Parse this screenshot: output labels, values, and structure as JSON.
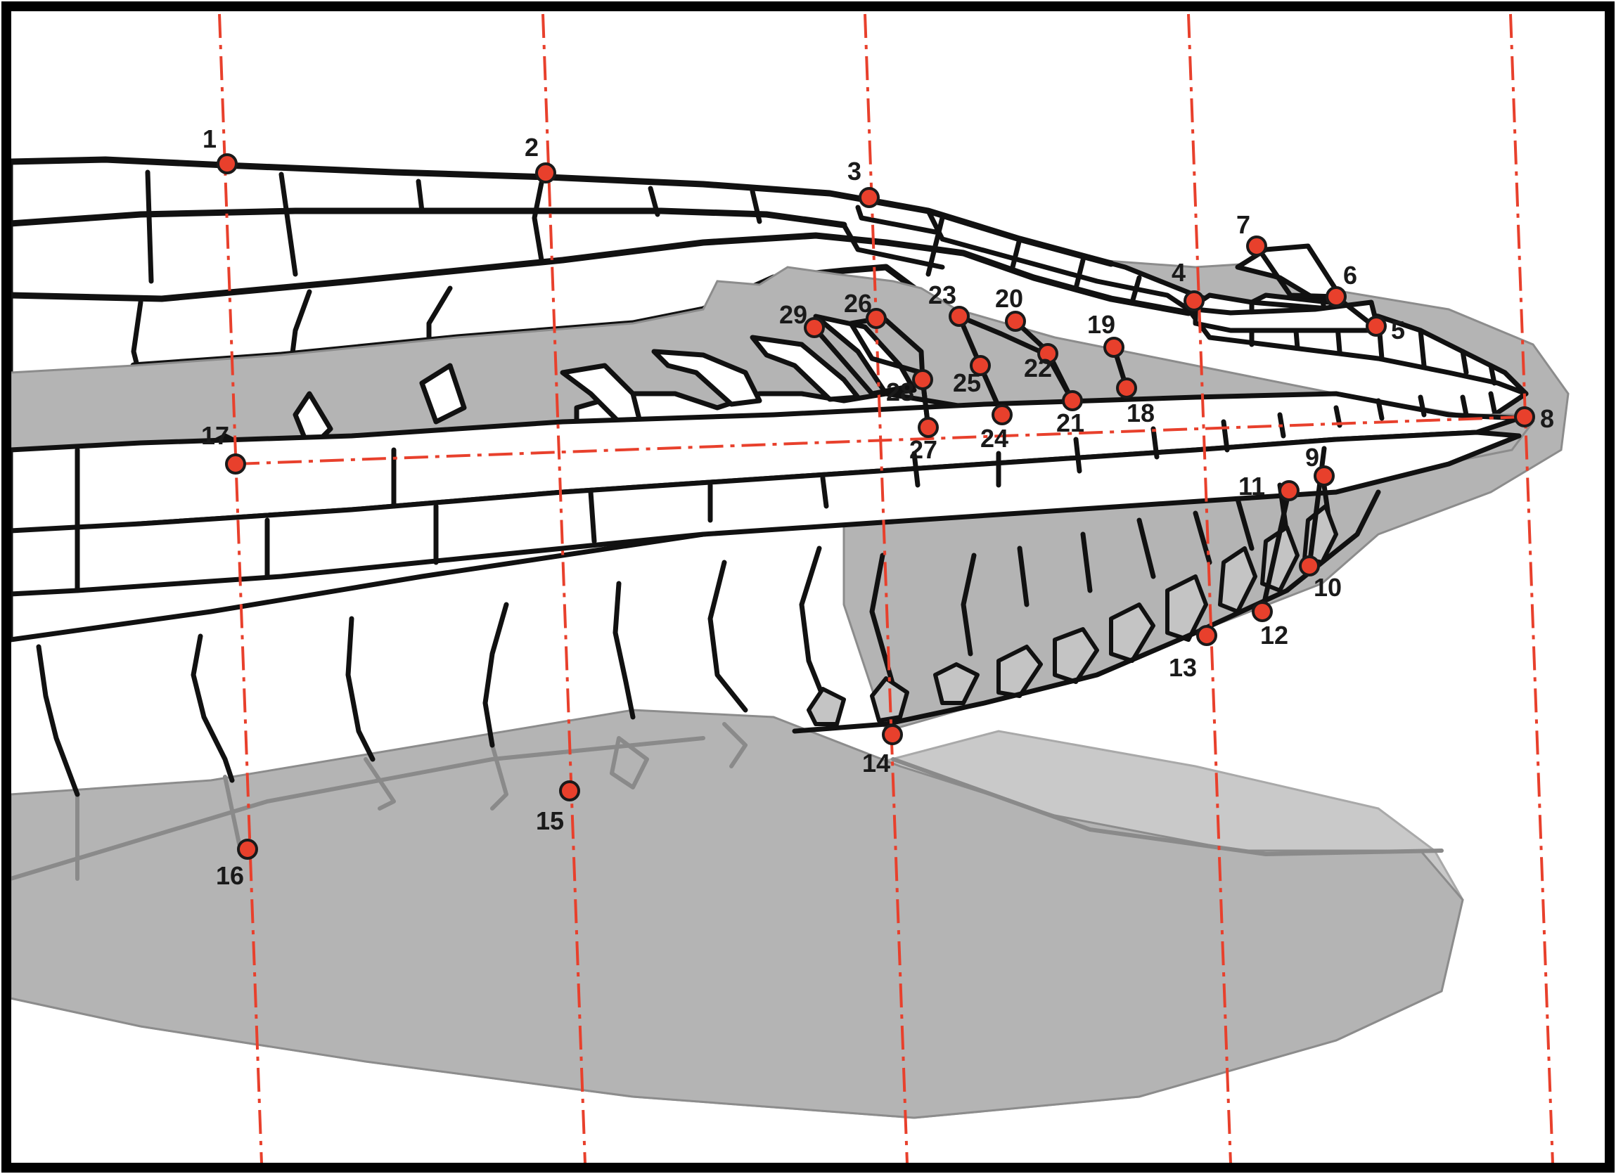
{
  "landmarks": [
    {
      "id": "1"
    },
    {
      "id": "2"
    },
    {
      "id": "3"
    },
    {
      "id": "4"
    },
    {
      "id": "5"
    },
    {
      "id": "6"
    },
    {
      "id": "7"
    },
    {
      "id": "8"
    },
    {
      "id": "9"
    },
    {
      "id": "10"
    },
    {
      "id": "11"
    },
    {
      "id": "12"
    },
    {
      "id": "13"
    },
    {
      "id": "14"
    },
    {
      "id": "15"
    },
    {
      "id": "16"
    },
    {
      "id": "17"
    },
    {
      "id": "18"
    },
    {
      "id": "19"
    },
    {
      "id": "20"
    },
    {
      "id": "21"
    },
    {
      "id": "22"
    },
    {
      "id": "23"
    },
    {
      "id": "24"
    },
    {
      "id": "25"
    },
    {
      "id": "26"
    },
    {
      "id": "27"
    },
    {
      "id": "28"
    },
    {
      "id": "29"
    }
  ],
  "colors": {
    "guide_line": "#e8402c",
    "landmark_fill": "#e8402c",
    "outline": "#111111",
    "shading": "#b4b4b4"
  }
}
